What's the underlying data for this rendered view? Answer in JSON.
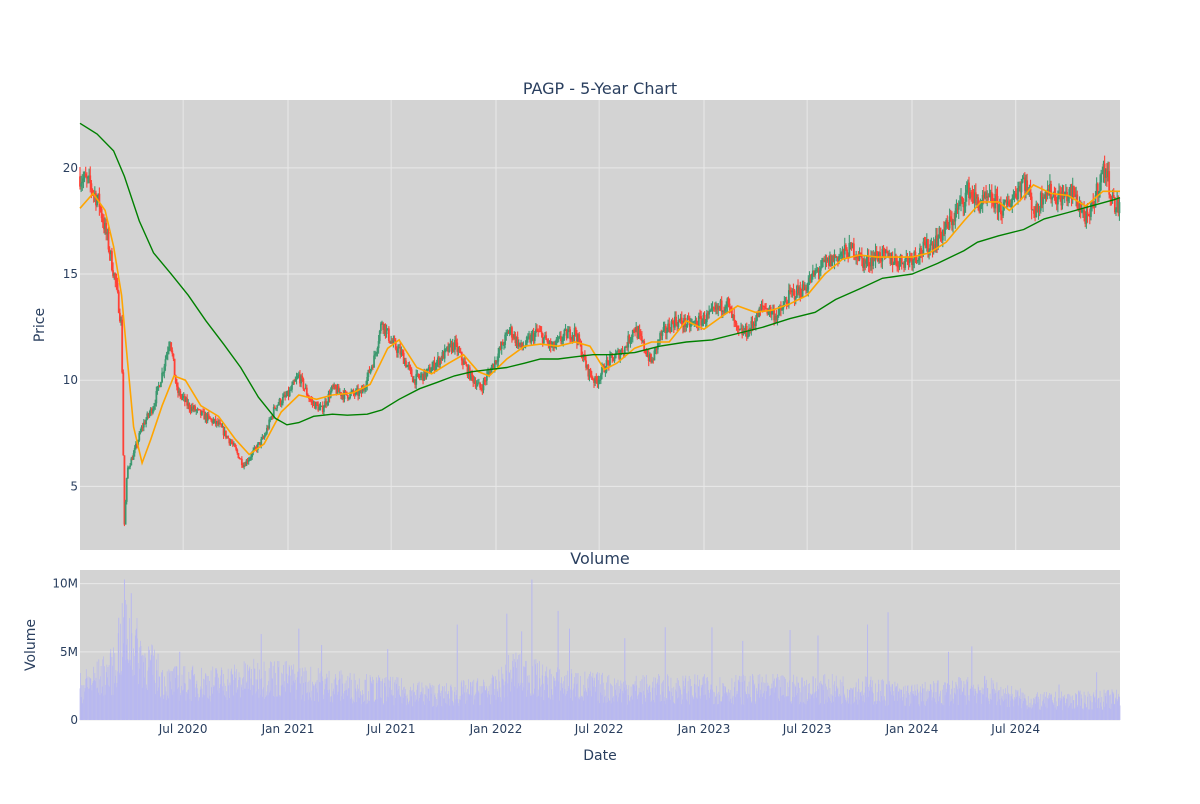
{
  "chart_data": [
    {
      "type": "candlestick",
      "title": "PAGP - 5-Year Chart",
      "ylabel": "Price",
      "ylim": [
        2,
        23.2
      ],
      "xlim": [
        "2020-01-02",
        "2024-12-31"
      ],
      "y_ticks": [
        5,
        10,
        15,
        20
      ],
      "x_tick_labels": [
        "Jul 2020",
        "Jan 2021",
        "Jul 2021",
        "Jan 2022",
        "Jul 2022",
        "Jan 2023",
        "Jul 2023",
        "Jan 2024",
        "Jul 2024"
      ],
      "x_tick_dates": [
        "2020-07-01",
        "2021-01-01",
        "2021-07-01",
        "2022-01-01",
        "2022-07-01",
        "2023-01-01",
        "2023-07-01",
        "2024-01-01",
        "2024-07-01"
      ],
      "grid": true,
      "colors": {
        "increasing": "#3d9970",
        "decreasing": "#ff4136",
        "short_ma": "#ffa500",
        "long_ma": "#008000",
        "plot_bg": "#d3d3d3",
        "grid": "#e8e8e8"
      },
      "price_path": [
        [
          "2020-01-02",
          19.6
        ],
        [
          "2020-01-20",
          19.2
        ],
        [
          "2020-02-05",
          18.3
        ],
        [
          "2020-02-20",
          16.5
        ],
        [
          "2020-03-05",
          14.5
        ],
        [
          "2020-03-15",
          12.5
        ],
        [
          "2020-03-18",
          6.5
        ],
        [
          "2020-03-20",
          3.2
        ],
        [
          "2020-03-25",
          5.8
        ],
        [
          "2020-04-05",
          6.5
        ],
        [
          "2020-04-20",
          7.8
        ],
        [
          "2020-05-10",
          8.8
        ],
        [
          "2020-05-25",
          10.3
        ],
        [
          "2020-06-08",
          12.0
        ],
        [
          "2020-06-20",
          9.5
        ],
        [
          "2020-07-10",
          8.8
        ],
        [
          "2020-08-01",
          8.4
        ],
        [
          "2020-09-01",
          7.9
        ],
        [
          "2020-09-25",
          7.0
        ],
        [
          "2020-10-15",
          6.0
        ],
        [
          "2020-11-01",
          6.6
        ],
        [
          "2020-11-20",
          7.3
        ],
        [
          "2020-12-10",
          8.8
        ],
        [
          "2021-01-01",
          9.3
        ],
        [
          "2021-01-20",
          10.2
        ],
        [
          "2021-02-10",
          9.0
        ],
        [
          "2021-03-01",
          8.6
        ],
        [
          "2021-03-20",
          9.6
        ],
        [
          "2021-04-10",
          9.3
        ],
        [
          "2021-05-10",
          9.4
        ],
        [
          "2021-06-01",
          11.0
        ],
        [
          "2021-06-15",
          12.8
        ],
        [
          "2021-07-01",
          11.8
        ],
        [
          "2021-07-20",
          11.2
        ],
        [
          "2021-08-10",
          10.0
        ],
        [
          "2021-09-01",
          10.3
        ],
        [
          "2021-10-01",
          11.2
        ],
        [
          "2021-10-20",
          11.7
        ],
        [
          "2021-11-15",
          10.3
        ],
        [
          "2021-12-05",
          9.6
        ],
        [
          "2022-01-01",
          11.0
        ],
        [
          "2022-01-25",
          12.4
        ],
        [
          "2022-02-15",
          11.5
        ],
        [
          "2022-03-15",
          12.3
        ],
        [
          "2022-04-10",
          11.5
        ],
        [
          "2022-05-01",
          12.1
        ],
        [
          "2022-05-20",
          12.3
        ],
        [
          "2022-06-10",
          10.5
        ],
        [
          "2022-06-25",
          9.9
        ],
        [
          "2022-07-15",
          10.8
        ],
        [
          "2022-08-15",
          11.5
        ],
        [
          "2022-09-01",
          12.5
        ],
        [
          "2022-10-01",
          10.8
        ],
        [
          "2022-10-15",
          12.0
        ],
        [
          "2022-11-10",
          12.8
        ],
        [
          "2022-12-10",
          12.6
        ],
        [
          "2023-01-10",
          13.0
        ],
        [
          "2023-02-10",
          13.7
        ],
        [
          "2023-03-01",
          12.2
        ],
        [
          "2023-03-20",
          12.3
        ],
        [
          "2023-04-15",
          13.5
        ],
        [
          "2023-05-10",
          13.0
        ],
        [
          "2023-06-01",
          14.0
        ],
        [
          "2023-06-25",
          14.3
        ],
        [
          "2023-07-20",
          15.2
        ],
        [
          "2023-08-20",
          15.8
        ],
        [
          "2023-09-20",
          16.2
        ],
        [
          "2023-10-10",
          15.5
        ],
        [
          "2023-11-01",
          15.9
        ],
        [
          "2023-12-10",
          15.6
        ],
        [
          "2024-01-01",
          15.8
        ],
        [
          "2024-02-10",
          16.5
        ],
        [
          "2024-03-10",
          17.5
        ],
        [
          "2024-04-10",
          19.0
        ],
        [
          "2024-04-25",
          18.3
        ],
        [
          "2024-05-20",
          18.5
        ],
        [
          "2024-06-10",
          18.0
        ],
        [
          "2024-06-25",
          18.6
        ],
        [
          "2024-07-15",
          19.5
        ],
        [
          "2024-08-05",
          17.8
        ],
        [
          "2024-08-20",
          19.0
        ],
        [
          "2024-09-15",
          18.6
        ],
        [
          "2024-10-10",
          18.8
        ],
        [
          "2024-11-05",
          17.4
        ],
        [
          "2024-11-25",
          19.4
        ],
        [
          "2024-12-05",
          20.0
        ],
        [
          "2024-12-20",
          18.3
        ],
        [
          "2024-12-31",
          18.1
        ]
      ],
      "short_ma": [
        [
          "2020-01-02",
          18.1
        ],
        [
          "2020-01-25",
          18.8
        ],
        [
          "2020-02-15",
          18.0
        ],
        [
          "2020-03-01",
          16.3
        ],
        [
          "2020-03-15",
          14.0
        ],
        [
          "2020-03-25",
          11.0
        ],
        [
          "2020-04-05",
          7.8
        ],
        [
          "2020-04-20",
          6.1
        ],
        [
          "2020-05-05",
          7.2
        ],
        [
          "2020-05-25",
          8.8
        ],
        [
          "2020-06-15",
          10.2
        ],
        [
          "2020-07-05",
          10.0
        ],
        [
          "2020-08-01",
          8.8
        ],
        [
          "2020-09-01",
          8.3
        ],
        [
          "2020-10-01",
          7.2
        ],
        [
          "2020-10-25",
          6.5
        ],
        [
          "2020-11-20",
          7.0
        ],
        [
          "2020-12-20",
          8.5
        ],
        [
          "2021-01-20",
          9.3
        ],
        [
          "2021-02-20",
          9.1
        ],
        [
          "2021-03-20",
          9.3
        ],
        [
          "2021-04-25",
          9.4
        ],
        [
          "2021-05-25",
          9.8
        ],
        [
          "2021-06-25",
          11.5
        ],
        [
          "2021-07-15",
          11.9
        ],
        [
          "2021-08-15",
          10.6
        ],
        [
          "2021-09-10",
          10.3
        ],
        [
          "2021-10-10",
          10.8
        ],
        [
          "2021-11-05",
          11.2
        ],
        [
          "2021-12-01",
          10.4
        ],
        [
          "2021-12-20",
          10.2
        ],
        [
          "2022-01-20",
          11.0
        ],
        [
          "2022-02-20",
          11.6
        ],
        [
          "2022-03-20",
          11.7
        ],
        [
          "2022-04-20",
          11.6
        ],
        [
          "2022-05-20",
          11.8
        ],
        [
          "2022-06-15",
          11.6
        ],
        [
          "2022-07-10",
          10.5
        ],
        [
          "2022-08-01",
          10.8
        ],
        [
          "2022-09-01",
          11.5
        ],
        [
          "2022-10-01",
          11.8
        ],
        [
          "2022-11-01",
          11.8
        ],
        [
          "2022-12-01",
          12.8
        ],
        [
          "2023-01-01",
          12.4
        ],
        [
          "2023-02-01",
          13.0
        ],
        [
          "2023-03-01",
          13.5
        ],
        [
          "2023-04-01",
          13.2
        ],
        [
          "2023-05-01",
          13.3
        ],
        [
          "2023-06-01",
          13.6
        ],
        [
          "2023-07-01",
          14.0
        ],
        [
          "2023-08-01",
          15.0
        ],
        [
          "2023-09-01",
          15.7
        ],
        [
          "2023-10-01",
          15.9
        ],
        [
          "2023-11-01",
          15.8
        ],
        [
          "2023-12-01",
          15.8
        ],
        [
          "2024-01-01",
          15.8
        ],
        [
          "2024-02-01",
          16.0
        ],
        [
          "2024-03-01",
          16.5
        ],
        [
          "2024-04-01",
          17.5
        ],
        [
          "2024-05-01",
          18.4
        ],
        [
          "2024-06-01",
          18.4
        ],
        [
          "2024-06-20",
          18.0
        ],
        [
          "2024-07-10",
          18.5
        ],
        [
          "2024-08-01",
          19.2
        ],
        [
          "2024-09-01",
          18.8
        ],
        [
          "2024-10-01",
          18.7
        ],
        [
          "2024-11-01",
          18.2
        ],
        [
          "2024-12-01",
          18.9
        ],
        [
          "2024-12-31",
          18.9
        ]
      ],
      "long_ma": [
        [
          "2020-01-02",
          22.1
        ],
        [
          "2020-02-01",
          21.6
        ],
        [
          "2020-03-01",
          20.8
        ],
        [
          "2020-03-20",
          19.6
        ],
        [
          "2020-04-15",
          17.5
        ],
        [
          "2020-05-10",
          16.0
        ],
        [
          "2020-06-10",
          15.0
        ],
        [
          "2020-07-10",
          14.0
        ],
        [
          "2020-08-10",
          12.8
        ],
        [
          "2020-09-10",
          11.7
        ],
        [
          "2020-10-10",
          10.6
        ],
        [
          "2020-11-10",
          9.2
        ],
        [
          "2020-12-10",
          8.2
        ],
        [
          "2020-12-30",
          7.9
        ],
        [
          "2021-01-20",
          8.0
        ],
        [
          "2021-02-15",
          8.3
        ],
        [
          "2021-03-20",
          8.4
        ],
        [
          "2021-04-15",
          8.35
        ],
        [
          "2021-05-20",
          8.4
        ],
        [
          "2021-06-15",
          8.6
        ],
        [
          "2021-07-15",
          9.1
        ],
        [
          "2021-08-20",
          9.6
        ],
        [
          "2021-09-20",
          9.9
        ],
        [
          "2021-10-20",
          10.2
        ],
        [
          "2021-11-20",
          10.4
        ],
        [
          "2021-12-20",
          10.5
        ],
        [
          "2022-01-20",
          10.6
        ],
        [
          "2022-02-20",
          10.8
        ],
        [
          "2022-03-20",
          11.0
        ],
        [
          "2022-04-20",
          11.0
        ],
        [
          "2022-05-20",
          11.1
        ],
        [
          "2022-06-20",
          11.2
        ],
        [
          "2022-07-20",
          11.2
        ],
        [
          "2022-09-01",
          11.3
        ],
        [
          "2022-10-15",
          11.6
        ],
        [
          "2022-12-01",
          11.8
        ],
        [
          "2023-01-15",
          11.9
        ],
        [
          "2023-03-01",
          12.2
        ],
        [
          "2023-04-15",
          12.5
        ],
        [
          "2023-06-01",
          12.9
        ],
        [
          "2023-07-15",
          13.2
        ],
        [
          "2023-08-20",
          13.8
        ],
        [
          "2023-10-01",
          14.3
        ],
        [
          "2023-11-10",
          14.8
        ],
        [
          "2024-01-01",
          15.0
        ],
        [
          "2024-02-15",
          15.5
        ],
        [
          "2024-04-01",
          16.1
        ],
        [
          "2024-04-25",
          16.5
        ],
        [
          "2024-06-01",
          16.8
        ],
        [
          "2024-07-15",
          17.1
        ],
        [
          "2024-08-20",
          17.6
        ],
        [
          "2024-10-01",
          17.9
        ],
        [
          "2024-11-10",
          18.2
        ],
        [
          "2024-12-20",
          18.5
        ],
        [
          "2024-12-31",
          18.6
        ]
      ]
    },
    {
      "type": "bar",
      "title": "Volume",
      "xlabel": "Date",
      "ylabel": "Volume",
      "ylim": [
        0,
        11000000
      ],
      "y_ticks": [
        0,
        5000000,
        10000000
      ],
      "y_tick_labels": [
        "0",
        "5M",
        "10M"
      ],
      "x_tick_labels": [
        "Jul 2020",
        "Jan 2021",
        "Jul 2021",
        "Jan 2022",
        "Jul 2022",
        "Jan 2023",
        "Jul 2023",
        "Jan 2024",
        "Jul 2024"
      ],
      "x_tick_dates": [
        "2020-07-01",
        "2021-01-01",
        "2021-07-01",
        "2022-01-01",
        "2022-07-01",
        "2023-01-01",
        "2023-07-01",
        "2024-01-01",
        "2024-07-01"
      ],
      "grid": true,
      "colors": {
        "bar": "#b8b8f0",
        "plot_bg": "#d3d3d3",
        "grid": "#e8e8e8"
      },
      "volume_baseline": [
        [
          "2020-01-02",
          2600000
        ],
        [
          "2020-03-01",
          4000000
        ],
        [
          "2020-03-20",
          7000000
        ],
        [
          "2020-04-20",
          5000000
        ],
        [
          "2020-06-01",
          3000000
        ],
        [
          "2020-09-01",
          3000000
        ],
        [
          "2020-12-01",
          3500000
        ],
        [
          "2021-02-01",
          3000000
        ],
        [
          "2021-06-01",
          2500000
        ],
        [
          "2021-10-01",
          2000000
        ],
        [
          "2022-01-01",
          2500000
        ],
        [
          "2022-02-01",
          4000000
        ],
        [
          "2022-04-01",
          3000000
        ],
        [
          "2022-08-01",
          2500000
        ],
        [
          "2023-01-01",
          2500000
        ],
        [
          "2023-06-01",
          2500000
        ],
        [
          "2023-10-01",
          2500000
        ],
        [
          "2024-01-01",
          2000000
        ],
        [
          "2024-05-01",
          2500000
        ],
        [
          "2024-08-01",
          1500000
        ],
        [
          "2024-12-31",
          1700000
        ]
      ],
      "volume_spikes": [
        [
          "2020-03-20",
          10300000
        ],
        [
          "2020-03-10",
          7500000
        ],
        [
          "2020-04-01",
          9300000
        ],
        [
          "2020-04-10",
          6700000
        ],
        [
          "2020-06-25",
          5000000
        ],
        [
          "2020-11-15",
          6300000
        ],
        [
          "2021-01-20",
          6700000
        ],
        [
          "2021-03-01",
          5500000
        ],
        [
          "2021-06-25",
          5200000
        ],
        [
          "2021-10-25",
          7000000
        ],
        [
          "2022-01-20",
          7800000
        ],
        [
          "2022-02-15",
          6500000
        ],
        [
          "2022-03-05",
          10300000
        ],
        [
          "2022-04-20",
          8000000
        ],
        [
          "2022-05-10",
          6700000
        ],
        [
          "2022-08-15",
          6000000
        ],
        [
          "2022-10-25",
          6800000
        ],
        [
          "2023-01-15",
          6800000
        ],
        [
          "2023-03-10",
          5800000
        ],
        [
          "2023-06-01",
          6600000
        ],
        [
          "2023-07-20",
          6200000
        ],
        [
          "2023-10-15",
          7000000
        ],
        [
          "2023-11-20",
          7900000
        ],
        [
          "2024-03-05",
          5000000
        ],
        [
          "2024-04-15",
          5400000
        ],
        [
          "2024-09-15",
          2600000
        ],
        [
          "2024-11-20",
          3500000
        ]
      ]
    }
  ]
}
